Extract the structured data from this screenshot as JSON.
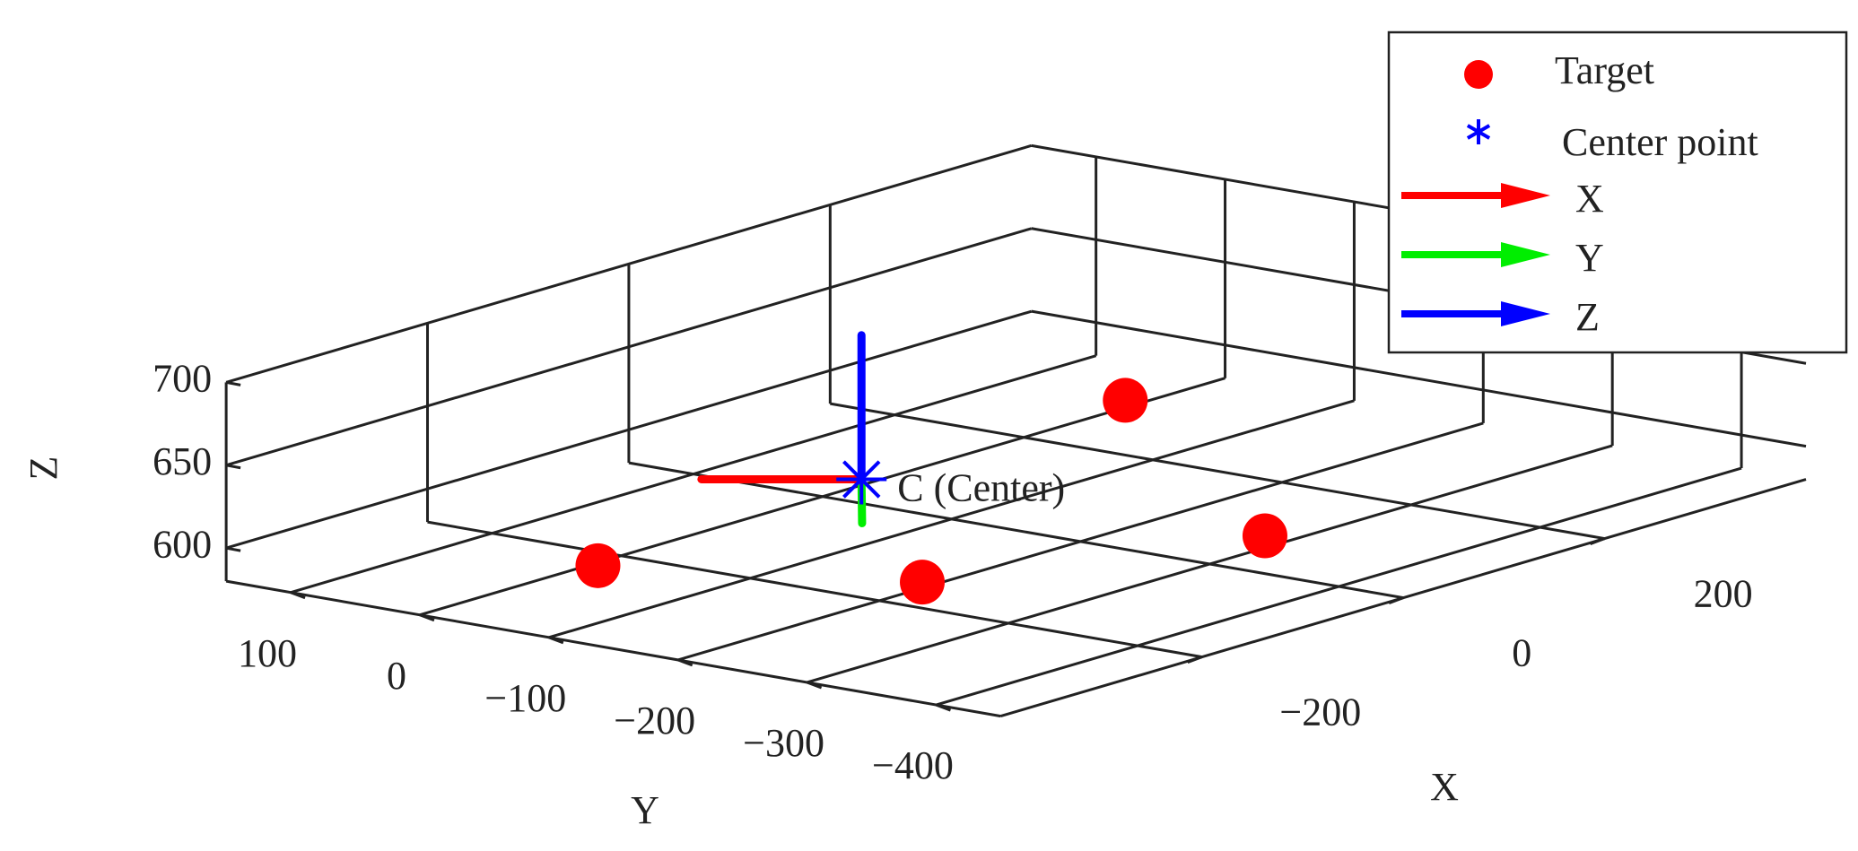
{
  "chart_data": {
    "type": "scatter3d",
    "xlabel": "X",
    "ylabel": "Y",
    "zlabel": "Z",
    "xlim": [
      -400,
      400
    ],
    "ylim": [
      -450,
      150
    ],
    "zlim": [
      580,
      700
    ],
    "xticks": [
      {
        "value": -200,
        "label": "−200"
      },
      0,
      200
    ],
    "yticks": [
      100,
      0,
      {
        "value": -100,
        "label": "−100"
      },
      {
        "value": -200,
        "label": "−200"
      },
      {
        "value": -300,
        "label": "−300"
      },
      {
        "value": -400,
        "label": "−400"
      }
    ],
    "zticks": [
      600,
      650,
      700
    ],
    "grid": true,
    "legend": "upper right",
    "series": [
      {
        "name": "Target",
        "color": "#ff0000",
        "marker": "circle",
        "x": [
          -300,
          -215,
          70,
          10
        ],
        "y": [
          -60,
          -245,
          -180,
          -335
        ],
        "z": [
          600,
          600,
          650,
          600
        ]
      },
      {
        "name": "Center point",
        "color": "#0000ff",
        "marker": "asterisk",
        "x": [
          -160
        ],
        "y": [
          -155
        ],
        "z": [
          640
        ]
      }
    ],
    "vectors": [
      {
        "name": "X",
        "color": "#ff0000",
        "end": [
          -219,
          -77,
          640
        ]
      },
      {
        "name": "Y",
        "color": "#00ee00",
        "end": [
          -253,
          -228,
          640
        ]
      },
      {
        "name": "Z",
        "color": "#0000ff",
        "end": [
          -160,
          -155,
          727
        ]
      }
    ],
    "annotation": "C (Center)"
  }
}
